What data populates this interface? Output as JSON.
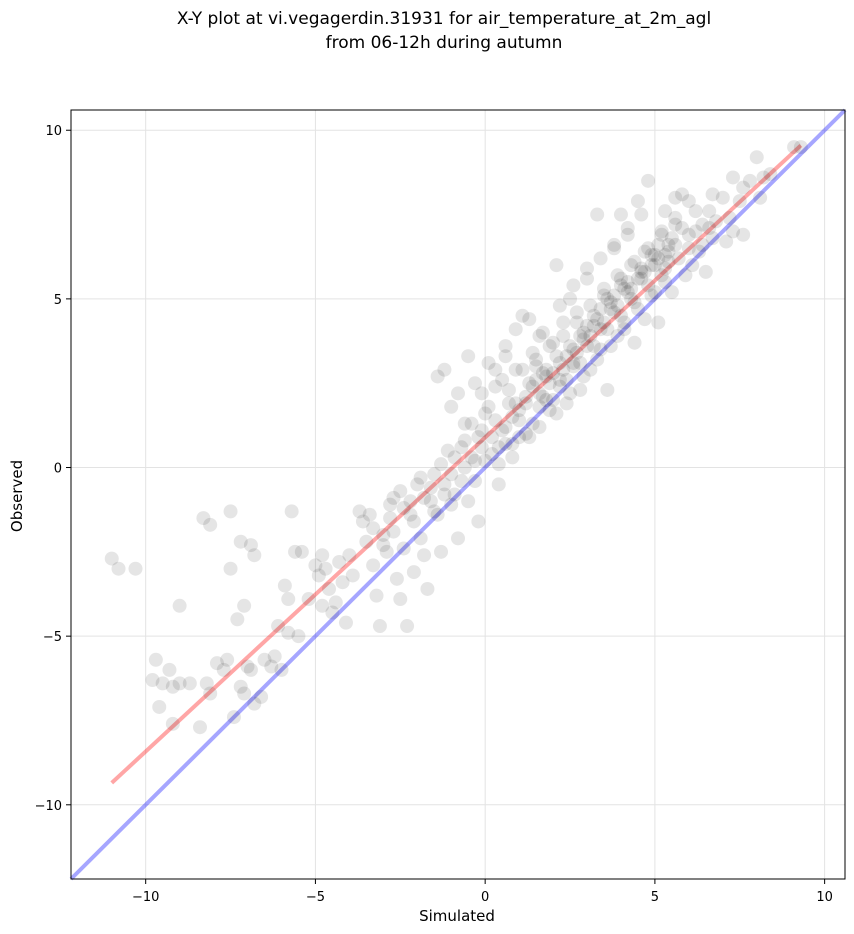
{
  "chart_data": {
    "type": "scatter",
    "title_line1": "X-Y plot at vi.vegagerdin.31931 for air_temperature_at_2m_agl",
    "title_line2": "from 06-12h during autumn",
    "xlabel": "Simulated",
    "ylabel": "Observed",
    "xlim": [
      -12.2,
      10.6
    ],
    "ylim": [
      -12.2,
      10.6
    ],
    "xticks": [
      -10,
      -5,
      0,
      5,
      10
    ],
    "yticks": [
      -10,
      -5,
      0,
      5,
      10
    ],
    "xtick_labels": [
      "−10",
      "−5",
      "0",
      "5",
      "10"
    ],
    "ytick_labels": [
      "−10",
      "−5",
      "0",
      "5",
      "10"
    ],
    "grid": true,
    "reference_lines": [
      {
        "color": "#0000ff",
        "opacity": 0.35,
        "points": [
          [
            -12.2,
            -12.2
          ],
          [
            10.6,
            10.6
          ]
        ]
      },
      {
        "color": "#ff0000",
        "opacity": 0.35,
        "points": [
          [
            -11.0,
            -9.35
          ],
          [
            9.3,
            9.55
          ]
        ]
      }
    ],
    "points": [
      [
        -11.0,
        -2.7
      ],
      [
        -10.8,
        -3.0
      ],
      [
        -10.3,
        -3.0
      ],
      [
        -9.0,
        -4.1
      ],
      [
        -8.3,
        -1.5
      ],
      [
        -8.1,
        -1.7
      ],
      [
        -7.5,
        -1.3
      ],
      [
        -7.2,
        -2.2
      ],
      [
        -6.9,
        -2.3
      ],
      [
        -6.8,
        -2.6
      ],
      [
        -7.5,
        -3.0
      ],
      [
        -7.1,
        -4.1
      ],
      [
        -7.3,
        -4.5
      ],
      [
        -9.8,
        -6.3
      ],
      [
        -9.7,
        -5.7
      ],
      [
        -9.5,
        -6.4
      ],
      [
        -9.3,
        -6.0
      ],
      [
        -9.2,
        -6.5
      ],
      [
        -9.6,
        -7.1
      ],
      [
        -9.2,
        -7.6
      ],
      [
        -9.0,
        -6.4
      ],
      [
        -8.7,
        -6.4
      ],
      [
        -8.4,
        -7.7
      ],
      [
        -8.2,
        -6.4
      ],
      [
        -8.1,
        -6.7
      ],
      [
        -7.9,
        -5.8
      ],
      [
        -7.7,
        -6.0
      ],
      [
        -7.6,
        -5.7
      ],
      [
        -7.4,
        -7.4
      ],
      [
        -7.2,
        -6.5
      ],
      [
        -7.1,
        -6.7
      ],
      [
        -7.0,
        -5.9
      ],
      [
        -6.9,
        -6.0
      ],
      [
        -6.8,
        -7.0
      ],
      [
        -6.6,
        -6.8
      ],
      [
        -6.5,
        -5.7
      ],
      [
        -6.3,
        -5.9
      ],
      [
        -6.2,
        -5.6
      ],
      [
        -6.1,
        -4.7
      ],
      [
        -6.0,
        -6.0
      ],
      [
        -5.8,
        -4.9
      ],
      [
        -5.9,
        -3.5
      ],
      [
        -5.8,
        -3.9
      ],
      [
        -5.5,
        -5.0
      ],
      [
        -5.7,
        -1.3
      ],
      [
        -5.6,
        -2.5
      ],
      [
        -5.4,
        -2.5
      ],
      [
        -5.2,
        -3.9
      ],
      [
        -5.0,
        -2.9
      ],
      [
        -4.9,
        -3.2
      ],
      [
        -4.8,
        -2.6
      ],
      [
        -4.7,
        -3.0
      ],
      [
        -4.6,
        -3.6
      ],
      [
        -4.5,
        -4.3
      ],
      [
        -4.8,
        -4.1
      ],
      [
        -4.4,
        -4.0
      ],
      [
        -4.3,
        -2.8
      ],
      [
        -4.2,
        -3.4
      ],
      [
        -4.1,
        -4.6
      ],
      [
        -4.0,
        -2.6
      ],
      [
        -3.9,
        -3.2
      ],
      [
        -3.7,
        -1.3
      ],
      [
        -3.6,
        -1.6
      ],
      [
        -3.5,
        -2.2
      ],
      [
        -3.4,
        -1.4
      ],
      [
        -3.3,
        -2.9
      ],
      [
        -3.2,
        -3.8
      ],
      [
        -3.1,
        -4.7
      ],
      [
        -3.0,
        -2.0
      ],
      [
        -2.9,
        -2.5
      ],
      [
        -2.8,
        -1.1
      ],
      [
        -2.7,
        -0.9
      ],
      [
        -2.6,
        -3.3
      ],
      [
        -2.5,
        -3.9
      ],
      [
        -2.4,
        -2.4
      ],
      [
        -2.3,
        -4.7
      ],
      [
        -2.2,
        -1.4
      ],
      [
        -2.1,
        -3.1
      ],
      [
        -2.0,
        -0.5
      ],
      [
        -1.9,
        -2.1
      ],
      [
        -1.8,
        -2.6
      ],
      [
        -1.7,
        -3.6
      ],
      [
        -1.6,
        -1.0
      ],
      [
        -1.5,
        -0.2
      ],
      [
        -1.4,
        -1.4
      ],
      [
        -1.3,
        -2.5
      ],
      [
        -1.2,
        -0.8
      ],
      [
        -1.1,
        0.5
      ],
      [
        -1.0,
        -1.1
      ],
      [
        -0.9,
        0.3
      ],
      [
        -0.8,
        -2.1
      ],
      [
        -0.7,
        -0.4
      ],
      [
        -0.6,
        0.8
      ],
      [
        -0.5,
        -1.0
      ],
      [
        -0.4,
        1.3
      ],
      [
        -0.3,
        0.2
      ],
      [
        -0.2,
        -1.6
      ],
      [
        -0.1,
        0.6
      ],
      [
        -1.4,
        2.7
      ],
      [
        -1.2,
        2.9
      ],
      [
        -1.0,
        1.8
      ],
      [
        -0.8,
        2.2
      ],
      [
        -0.6,
        1.3
      ],
      [
        -0.5,
        3.3
      ],
      [
        -0.3,
        2.5
      ],
      [
        -0.2,
        0.9
      ],
      [
        0.0,
        1.6
      ],
      [
        0.1,
        3.1
      ],
      [
        0.2,
        0.4
      ],
      [
        0.3,
        2.4
      ],
      [
        0.4,
        -0.5
      ],
      [
        0.5,
        1.1
      ],
      [
        0.6,
        3.6
      ],
      [
        0.7,
        1.9
      ],
      [
        0.8,
        0.7
      ],
      [
        0.9,
        2.9
      ],
      [
        1.0,
        1.4
      ],
      [
        1.1,
        4.5
      ],
      [
        1.2,
        2.1
      ],
      [
        1.3,
        0.9
      ],
      [
        1.4,
        3.4
      ],
      [
        1.5,
        2.6
      ],
      [
        1.6,
        1.2
      ],
      [
        1.7,
        4.0
      ],
      [
        1.8,
        2.9
      ],
      [
        1.9,
        1.7
      ],
      [
        2.0,
        3.7
      ],
      [
        2.1,
        6.0
      ],
      [
        2.2,
        2.6
      ],
      [
        2.3,
        4.3
      ],
      [
        2.4,
        1.9
      ],
      [
        2.5,
        5.0
      ],
      [
        2.6,
        3.1
      ],
      [
        2.7,
        4.6
      ],
      [
        2.8,
        2.3
      ],
      [
        2.9,
        3.8
      ],
      [
        3.0,
        5.6
      ],
      [
        3.1,
        2.9
      ],
      [
        3.2,
        4.2
      ],
      [
        3.3,
        7.5
      ],
      [
        3.4,
        3.5
      ],
      [
        3.5,
        5.1
      ],
      [
        3.6,
        2.3
      ],
      [
        3.7,
        4.7
      ],
      [
        3.8,
        6.6
      ],
      [
        3.9,
        3.9
      ],
      [
        4.0,
        5.4
      ],
      [
        4.1,
        4.3
      ],
      [
        4.2,
        6.9
      ],
      [
        4.3,
        5.0
      ],
      [
        4.4,
        3.7
      ],
      [
        4.5,
        7.9
      ],
      [
        4.6,
        5.8
      ],
      [
        4.7,
        4.4
      ],
      [
        4.8,
        8.5
      ],
      [
        4.9,
        6.3
      ],
      [
        5.0,
        5.2
      ],
      [
        5.1,
        4.3
      ],
      [
        5.2,
        7.0
      ],
      [
        5.3,
        5.9
      ],
      [
        5.4,
        6.6
      ],
      [
        5.5,
        5.2
      ],
      [
        5.6,
        7.4
      ],
      [
        5.7,
        6.2
      ],
      [
        5.8,
        8.1
      ],
      [
        5.9,
        5.7
      ],
      [
        6.0,
        6.9
      ],
      [
        6.1,
        6.0
      ],
      [
        6.2,
        7.6
      ],
      [
        6.3,
        6.4
      ],
      [
        6.4,
        7.2
      ],
      [
        6.5,
        5.8
      ],
      [
        6.6,
        7.6
      ],
      [
        6.7,
        6.8
      ],
      [
        6.8,
        7.3
      ],
      [
        7.0,
        8.0
      ],
      [
        7.1,
        6.7
      ],
      [
        7.2,
        7.4
      ],
      [
        7.3,
        7.0
      ],
      [
        7.5,
        7.9
      ],
      [
        7.6,
        6.9
      ],
      [
        7.8,
        8.5
      ],
      [
        8.0,
        9.2
      ],
      [
        8.1,
        8.0
      ],
      [
        8.2,
        8.6
      ],
      [
        8.4,
        8.7
      ],
      [
        9.1,
        9.5
      ],
      [
        9.3,
        9.5
      ],
      [
        -0.3,
        -0.4
      ],
      [
        0.0,
        0.2
      ],
      [
        0.2,
        0.9
      ],
      [
        0.4,
        0.1
      ],
      [
        0.6,
        0.7
      ],
      [
        0.8,
        1.5
      ],
      [
        1.0,
        0.9
      ],
      [
        1.2,
        1.9
      ],
      [
        1.4,
        1.3
      ],
      [
        1.6,
        2.2
      ],
      [
        1.8,
        2.0
      ],
      [
        2.0,
        2.8
      ],
      [
        2.2,
        2.4
      ],
      [
        2.4,
        3.3
      ],
      [
        2.6,
        3.0
      ],
      [
        2.8,
        3.9
      ],
      [
        3.0,
        3.6
      ],
      [
        3.2,
        4.5
      ],
      [
        3.4,
        4.1
      ],
      [
        3.6,
        5.0
      ],
      [
        3.8,
        4.6
      ],
      [
        4.0,
        5.6
      ],
      [
        4.2,
        5.2
      ],
      [
        4.4,
        6.1
      ],
      [
        4.6,
        5.6
      ],
      [
        4.8,
        6.5
      ],
      [
        5.0,
        6.0
      ],
      [
        5.2,
        6.9
      ],
      [
        5.4,
        6.4
      ],
      [
        5.6,
        7.2
      ],
      [
        0.1,
        1.8
      ],
      [
        0.3,
        1.4
      ],
      [
        0.5,
        2.6
      ],
      [
        0.7,
        2.3
      ],
      [
        0.9,
        1.9
      ],
      [
        1.1,
        2.9
      ],
      [
        1.3,
        2.5
      ],
      [
        1.5,
        3.2
      ],
      [
        1.7,
        2.8
      ],
      [
        1.9,
        3.6
      ],
      [
        2.1,
        3.3
      ],
      [
        2.3,
        3.9
      ],
      [
        2.5,
        3.6
      ],
      [
        2.7,
        4.3
      ],
      [
        2.9,
        4.0
      ],
      [
        3.1,
        4.8
      ],
      [
        3.3,
        4.4
      ],
      [
        3.5,
        5.3
      ],
      [
        3.7,
        4.9
      ],
      [
        3.9,
        5.7
      ],
      [
        4.1,
        5.3
      ],
      [
        4.3,
        6.0
      ],
      [
        4.5,
        5.6
      ],
      [
        4.7,
        6.4
      ],
      [
        4.9,
        6.0
      ],
      [
        5.1,
        6.6
      ],
      [
        5.3,
        6.3
      ],
      [
        5.5,
        6.8
      ],
      [
        0.4,
        0.6
      ],
      [
        0.6,
        1.2
      ],
      [
        0.8,
        0.3
      ],
      [
        1.0,
        1.7
      ],
      [
        1.2,
        1.0
      ],
      [
        1.4,
        2.4
      ],
      [
        1.6,
        1.8
      ],
      [
        1.8,
        2.7
      ],
      [
        2.0,
        2.0
      ],
      [
        2.2,
        3.1
      ],
      [
        2.4,
        2.6
      ],
      [
        2.6,
        3.5
      ],
      [
        2.8,
        3.1
      ],
      [
        3.0,
        4.2
      ],
      [
        3.2,
        3.6
      ],
      [
        3.4,
        4.7
      ],
      [
        3.6,
        4.1
      ],
      [
        3.8,
        5.1
      ],
      [
        4.0,
        4.5
      ],
      [
        4.2,
        5.5
      ],
      [
        4.4,
        4.9
      ],
      [
        4.6,
        5.9
      ],
      [
        4.8,
        5.4
      ],
      [
        5.0,
        6.3
      ],
      [
        5.2,
        5.7
      ],
      [
        5.4,
        6.1
      ],
      [
        5.6,
        6.6
      ],
      [
        5.8,
        7.1
      ],
      [
        6.0,
        6.5
      ],
      [
        6.2,
        7.0
      ],
      [
        6.4,
        6.6
      ],
      [
        6.6,
        7.1
      ],
      [
        -2.8,
        -1.5
      ],
      [
        -2.5,
        -0.7
      ],
      [
        -2.2,
        -1.0
      ],
      [
        -1.9,
        -0.3
      ],
      [
        -1.6,
        -0.6
      ],
      [
        -1.3,
        0.1
      ],
      [
        -1.0,
        -0.2
      ],
      [
        -0.7,
        0.6
      ],
      [
        -0.4,
        0.3
      ],
      [
        -0.1,
        1.1
      ],
      [
        -3.3,
        -1.8
      ],
      [
        -3.0,
        -2.3
      ],
      [
        -2.7,
        -1.9
      ],
      [
        -2.4,
        -1.2
      ],
      [
        -2.1,
        -1.6
      ],
      [
        -1.8,
        -0.9
      ],
      [
        -1.5,
        -1.3
      ],
      [
        -1.2,
        -0.5
      ],
      [
        -0.9,
        -0.8
      ],
      [
        -0.6,
        0.0
      ],
      [
        1.5,
        3.0
      ],
      [
        1.7,
        2.1
      ],
      [
        1.9,
        2.5
      ],
      [
        2.1,
        1.6
      ],
      [
        2.3,
        2.9
      ],
      [
        2.5,
        2.2
      ],
      [
        2.7,
        3.4
      ],
      [
        2.9,
        2.7
      ],
      [
        3.1,
        3.9
      ],
      [
        3.3,
        3.2
      ],
      [
        3.5,
        4.3
      ],
      [
        3.7,
        3.6
      ],
      [
        3.9,
        4.8
      ],
      [
        4.1,
        4.1
      ],
      [
        4.3,
        5.3
      ],
      [
        4.5,
        4.7
      ],
      [
        4.7,
        5.8
      ],
      [
        4.9,
        5.1
      ],
      [
        5.1,
        6.2
      ],
      [
        5.3,
        5.5
      ],
      [
        0.9,
        4.1
      ],
      [
        1.3,
        4.4
      ],
      [
        1.6,
        3.9
      ],
      [
        0.6,
        3.3
      ],
      [
        0.3,
        2.9
      ],
      [
        -0.1,
        2.2
      ],
      [
        2.2,
        4.8
      ],
      [
        2.6,
        5.4
      ],
      [
        3.0,
        5.9
      ],
      [
        3.4,
        6.2
      ],
      [
        3.8,
        6.5
      ],
      [
        4.2,
        7.1
      ],
      [
        4.0,
        7.5
      ],
      [
        4.6,
        7.5
      ],
      [
        5.3,
        7.6
      ],
      [
        5.6,
        8.0
      ],
      [
        6.0,
        7.9
      ],
      [
        6.7,
        8.1
      ],
      [
        7.3,
        8.6
      ],
      [
        7.6,
        8.3
      ]
    ]
  }
}
